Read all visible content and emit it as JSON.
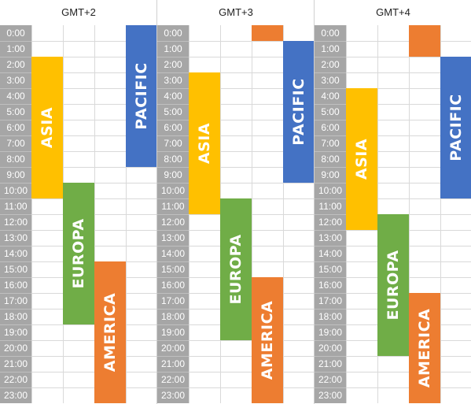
{
  "hours": [
    "0:00",
    "1:00",
    "2:00",
    "3:00",
    "4:00",
    "5:00",
    "6:00",
    "7:00",
    "8:00",
    "9:00",
    "10:00",
    "11:00",
    "12:00",
    "13:00",
    "14:00",
    "15:00",
    "16:00",
    "17:00",
    "18:00",
    "19:00",
    "20:00",
    "21:00",
    "22:00",
    "23:00"
  ],
  "colors": {
    "asia": "#ffc000",
    "pacific": "#4472c4",
    "europa": "#70ad47",
    "america": "#ed7d31",
    "hour_column": "#a6a6a6"
  },
  "panels": [
    {
      "title": "GMT+2",
      "blocks": [
        {
          "region": "asia",
          "label": "ASIA",
          "col": 1,
          "start": 2,
          "end": 10
        },
        {
          "region": "pacific",
          "label": "PACIFIC",
          "col": 4,
          "start": 0,
          "end": 8
        },
        {
          "region": "europa",
          "label": "EUROPA",
          "col": 2,
          "start": 10,
          "end": 18
        },
        {
          "region": "america",
          "label": "AMERICA",
          "col": 3,
          "start": 15,
          "end": 23
        }
      ]
    },
    {
      "title": "GMT+3",
      "blocks": [
        {
          "region": "america",
          "label": "",
          "col": 3,
          "start": 0,
          "end": 0
        },
        {
          "region": "pacific",
          "label": "PACIFIC",
          "col": 4,
          "start": 1,
          "end": 9
        },
        {
          "region": "asia",
          "label": "ASIA",
          "col": 1,
          "start": 3,
          "end": 11
        },
        {
          "region": "europa",
          "label": "EUROPA",
          "col": 2,
          "start": 11,
          "end": 19
        },
        {
          "region": "america",
          "label": "AMERICA",
          "col": 3,
          "start": 16,
          "end": 23
        }
      ]
    },
    {
      "title": "GMT+4",
      "blocks": [
        {
          "region": "america",
          "label": "",
          "col": 3,
          "start": 0,
          "end": 1
        },
        {
          "region": "pacific",
          "label": "PACIFIC",
          "col": 4,
          "start": 2,
          "end": 10
        },
        {
          "region": "asia",
          "label": "ASIA",
          "col": 1,
          "start": 4,
          "end": 12
        },
        {
          "region": "europa",
          "label": "EUROPA",
          "col": 2,
          "start": 12,
          "end": 20
        },
        {
          "region": "america",
          "label": "AMERICA",
          "col": 3,
          "start": 17,
          "end": 23
        }
      ]
    }
  ]
}
